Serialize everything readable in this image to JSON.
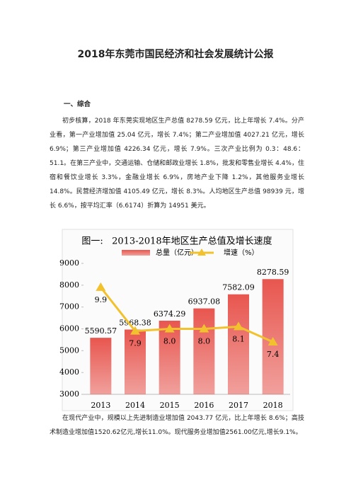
{
  "title": "2018年东莞市国民经济和社会发展统计公报",
  "section": {
    "heading": "一、综合",
    "paragraphs": [
      "初步核算，2018 年东莞实现地区生产总值 8278.59 亿元，比上年增长 7.4%。分产业看，第一产业增加值 25.04 亿元，增长 7.4%；第二产业增加值 4027.21 亿元，增长 6.9%；第三产业增加值 4226.34 亿元，增长 7.9%。三次产业比例为 0.3：48.6：51.1。在第三产业中，交通运输、仓储和邮政业增长 1.8%，批发和零售业增长 4.4%，住宿和餐饮业增长 3.3%，金融业增长 6.9%，房地产业下降 1.2%，其他服务业增长 14.8%。民营经济增加值 4105.49 亿元，增长 8.3%。人均地区生产总值 98939 元，增长 6.6%，按平均汇率（6.6174）折算为 14951 美元。"
    ]
  },
  "chart_data": {
    "type": "bar",
    "title": "图一:   2013-2018年地区生产总值及增长速度",
    "categories": [
      "2013",
      "2014",
      "2015",
      "2016",
      "2017",
      "2018"
    ],
    "series": [
      {
        "name": "总量（亿元）",
        "type": "bar",
        "color": "#e8564f",
        "values": [
          5590.57,
          5968.38,
          6374.29,
          6937.08,
          7582.09,
          8278.59
        ]
      },
      {
        "name": "增速（%）",
        "type": "line",
        "axis": "y2",
        "color": "#f2c12e",
        "values": [
          9.9,
          7.9,
          8.0,
          8.0,
          8.1,
          7.4
        ],
        "value_labels": [
          "9.9",
          "7.9",
          "8.0",
          "8.0",
          "8.1",
          "7.4"
        ]
      }
    ],
    "ylim": [
      3000,
      9000
    ],
    "yticks": [
      3000,
      4000,
      5000,
      6000,
      7000,
      8000,
      9000
    ],
    "y2lim": [
      5,
      11
    ],
    "grid": false
  },
  "closing": {
    "paragraphs": [
      "在现代产业中，规模以上先进制造业增加值 2043.77 亿元，比上年增长 8.6%；高技术制造业增加值1520.62亿元,增长11.0%。现代服务业增加值2561.00亿元,增长9.1%。"
    ]
  }
}
